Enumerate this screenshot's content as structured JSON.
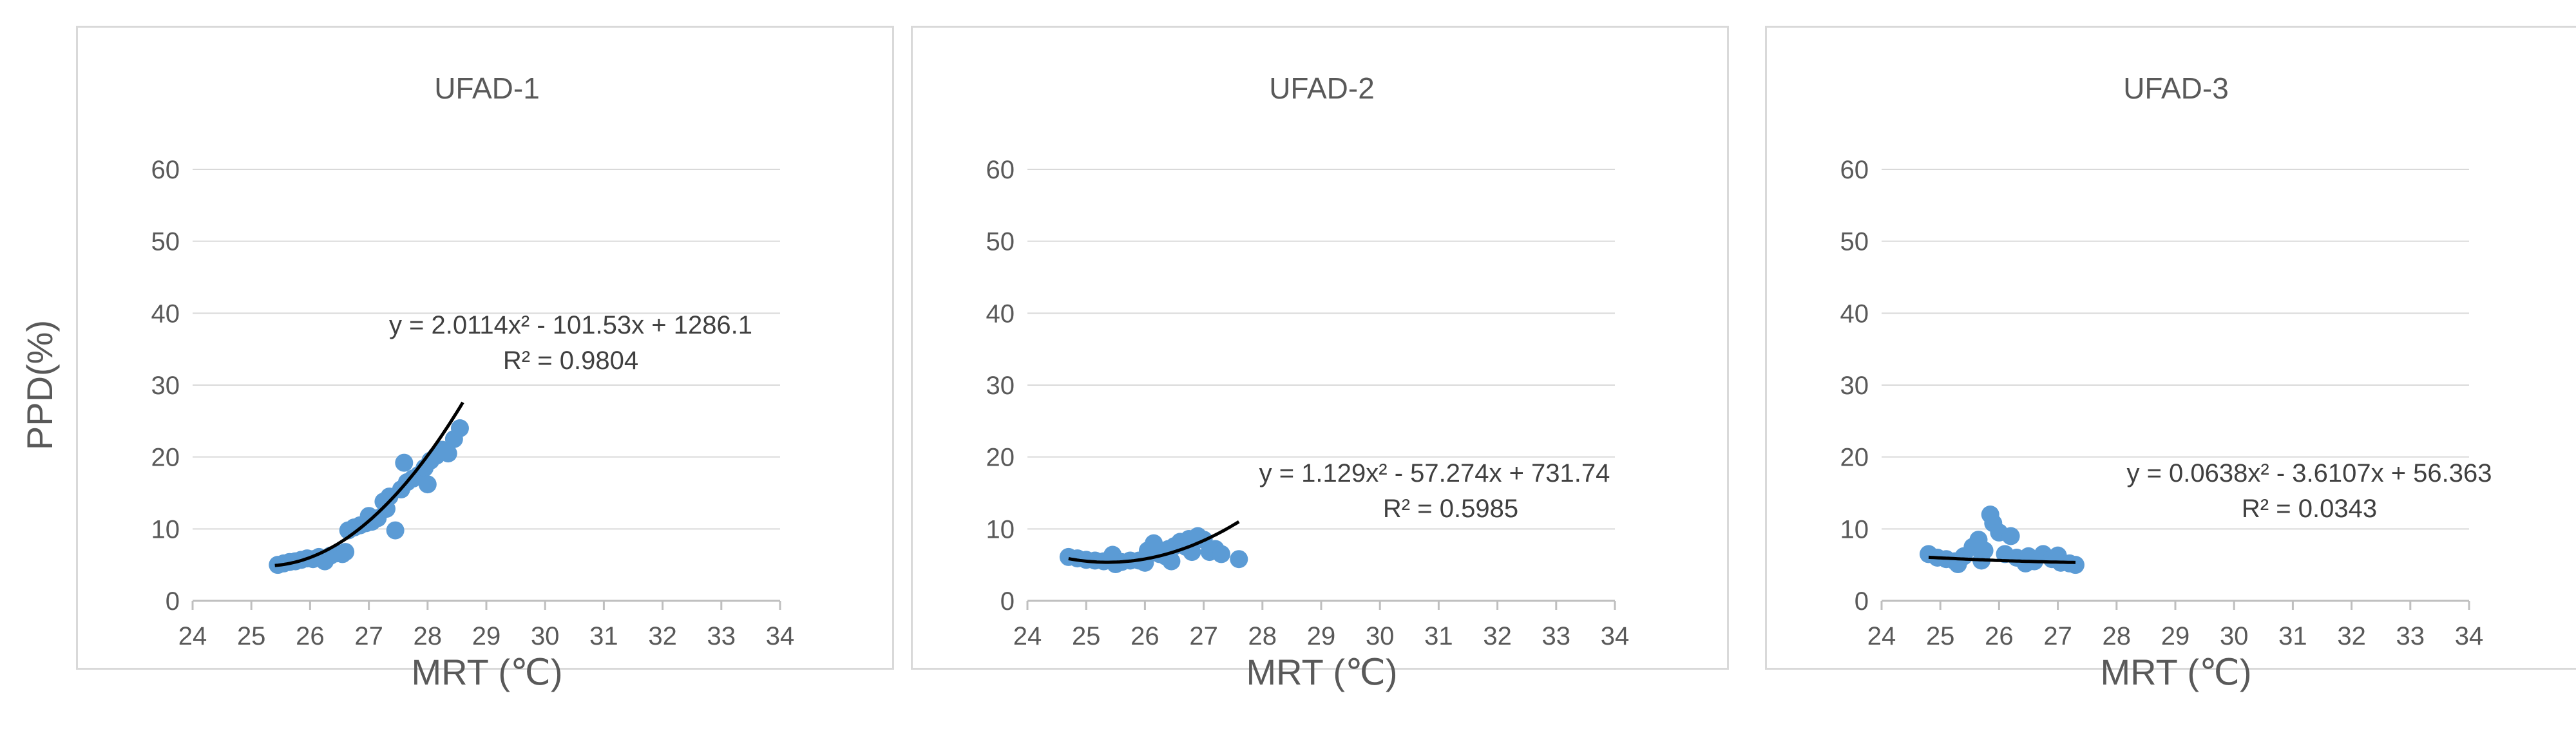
{
  "chart_data": [
    {
      "type": "scatter",
      "title": "UFAD-1",
      "xlabel": "MRT (℃)",
      "ylabel": "PPD(%)",
      "xlim": [
        24,
        34
      ],
      "ylim": [
        0,
        60
      ],
      "x_ticks": [
        "24",
        "25",
        "26",
        "27",
        "28",
        "29",
        "30",
        "31",
        "32",
        "33",
        "34"
      ],
      "y_ticks": [
        "0",
        "10",
        "20",
        "30",
        "40",
        "50",
        "60"
      ],
      "grid": true,
      "points": [
        [
          25.45,
          5.0
        ],
        [
          25.55,
          5.2
        ],
        [
          25.65,
          5.4
        ],
        [
          25.75,
          5.5
        ],
        [
          25.85,
          5.7
        ],
        [
          25.95,
          5.9
        ],
        [
          26.05,
          5.8
        ],
        [
          26.15,
          6.1
        ],
        [
          26.25,
          5.5
        ],
        [
          26.35,
          6.3
        ],
        [
          26.45,
          6.6
        ],
        [
          26.55,
          6.5
        ],
        [
          26.65,
          9.8
        ],
        [
          26.75,
          10.2
        ],
        [
          26.85,
          10.5
        ],
        [
          26.95,
          10.8
        ],
        [
          27.05,
          11.0
        ],
        [
          27.15,
          11.5
        ],
        [
          27.25,
          13.8
        ],
        [
          27.35,
          14.5
        ],
        [
          27.45,
          9.8
        ],
        [
          27.55,
          15.5
        ],
        [
          27.65,
          16.5
        ],
        [
          27.75,
          17.0
        ],
        [
          27.85,
          17.5
        ],
        [
          27.95,
          18.5
        ],
        [
          28.05,
          19.5
        ],
        [
          28.15,
          20.2
        ],
        [
          28.25,
          21.0
        ],
        [
          28.35,
          20.5
        ],
        [
          28.45,
          22.5
        ],
        [
          28.55,
          24.0
        ],
        [
          26.6,
          6.8
        ],
        [
          27.0,
          11.8
        ],
        [
          27.3,
          12.8
        ],
        [
          27.6,
          19.2
        ],
        [
          28.0,
          16.2
        ]
      ],
      "trend": {
        "a": 2.0114,
        "b": -101.53,
        "c": 1286.1,
        "x_range": [
          25.4,
          28.6
        ]
      },
      "equation": "y = 2.0114x² - 101.53x + 1286.1",
      "r2": "R² = 0.9804"
    },
    {
      "type": "scatter",
      "title": "UFAD-2",
      "xlabel": "MRT (℃)",
      "ylabel": "",
      "xlim": [
        24,
        34
      ],
      "ylim": [
        0,
        60
      ],
      "x_ticks": [
        "24",
        "25",
        "26",
        "27",
        "28",
        "29",
        "30",
        "31",
        "32",
        "33",
        "34"
      ],
      "y_ticks": [
        "0",
        "10",
        "20",
        "30",
        "40",
        "50",
        "60"
      ],
      "grid": true,
      "points": [
        [
          24.7,
          6.1
        ],
        [
          24.85,
          5.9
        ],
        [
          25.0,
          5.7
        ],
        [
          25.15,
          5.6
        ],
        [
          25.3,
          5.5
        ],
        [
          25.45,
          6.4
        ],
        [
          25.6,
          5.4
        ],
        [
          25.75,
          5.6
        ],
        [
          25.9,
          5.6
        ],
        [
          26.05,
          7.0
        ],
        [
          26.15,
          8.0
        ],
        [
          26.25,
          6.5
        ],
        [
          26.35,
          6.2
        ],
        [
          26.45,
          5.5
        ],
        [
          26.5,
          7.6
        ],
        [
          26.6,
          8.2
        ],
        [
          26.7,
          7.5
        ],
        [
          26.8,
          6.8
        ],
        [
          26.9,
          9.0
        ],
        [
          27.0,
          8.5
        ],
        [
          27.1,
          6.8
        ],
        [
          27.2,
          7.2
        ],
        [
          27.3,
          6.5
        ],
        [
          27.6,
          5.8
        ],
        [
          25.5,
          5.1
        ],
        [
          26.0,
          5.3
        ],
        [
          26.4,
          7.2
        ],
        [
          26.75,
          8.6
        ]
      ],
      "trend": {
        "a": 1.129,
        "b": -57.274,
        "c": 731.74,
        "x_range": [
          24.7,
          27.6
        ]
      },
      "equation": "y = 1.129x² - 57.274x + 731.74",
      "r2": "R² = 0.5985"
    },
    {
      "type": "scatter",
      "title": "UFAD-3",
      "xlabel": "MRT (℃)",
      "ylabel": "",
      "xlim": [
        24,
        34
      ],
      "ylim": [
        0,
        60
      ],
      "x_ticks": [
        "24",
        "25",
        "26",
        "27",
        "28",
        "29",
        "30",
        "31",
        "32",
        "33",
        "34"
      ],
      "y_ticks": [
        "0",
        "10",
        "20",
        "30",
        "40",
        "50",
        "60"
      ],
      "grid": true,
      "points": [
        [
          24.8,
          6.5
        ],
        [
          24.95,
          6.0
        ],
        [
          25.1,
          5.8
        ],
        [
          25.25,
          5.5
        ],
        [
          25.4,
          6.2
        ],
        [
          25.55,
          7.5
        ],
        [
          25.65,
          8.5
        ],
        [
          25.75,
          7.0
        ],
        [
          25.85,
          12.0
        ],
        [
          25.9,
          10.8
        ],
        [
          26.0,
          9.5
        ],
        [
          26.1,
          6.5
        ],
        [
          26.2,
          9.0
        ],
        [
          26.3,
          6.0
        ],
        [
          26.45,
          5.2
        ],
        [
          26.6,
          5.5
        ],
        [
          26.75,
          6.5
        ],
        [
          26.9,
          5.8
        ],
        [
          27.05,
          5.3
        ],
        [
          27.2,
          5.2
        ],
        [
          27.3,
          5.0
        ],
        [
          25.3,
          5.1
        ],
        [
          25.7,
          5.6
        ],
        [
          26.5,
          6.2
        ],
        [
          27.0,
          6.3
        ]
      ],
      "trend": {
        "a": 0.0638,
        "b": -3.6107,
        "c": 56.363,
        "x_range": [
          24.8,
          27.3
        ]
      },
      "equation": "y = 0.0638x² - 3.6107x + 56.363",
      "r2": "R² = 0.0343"
    }
  ]
}
